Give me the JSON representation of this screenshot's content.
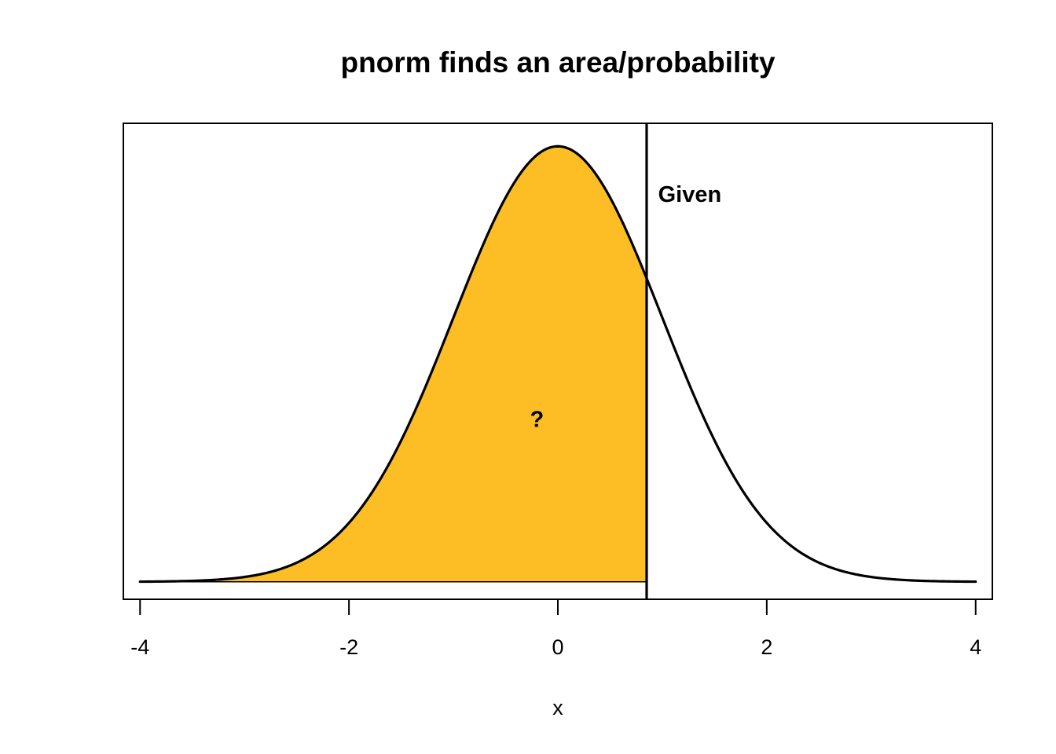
{
  "chart_data": {
    "type": "area",
    "title": "pnorm finds an area/probability",
    "xlabel": "x",
    "ylabel": "",
    "xlim": [
      -4.16,
      4.16
    ],
    "ylim": [
      -0.016,
      0.42
    ],
    "xticks": [
      -4,
      -2,
      0,
      2,
      4
    ],
    "xtick_labels": [
      "-4",
      "-2",
      "0",
      "2",
      "4"
    ],
    "show_y_axis": false,
    "grid": false,
    "curve": {
      "name": "",
      "function": "standard normal density",
      "mean": 0,
      "sd": 1,
      "x_range": [
        -4,
        4
      ],
      "color": "#000000"
    },
    "shaded_region": {
      "x_from": -4,
      "x_to": 0.85,
      "fill_color": "#FDBE25"
    },
    "vertical_line": {
      "x": 0.85,
      "color": "#000000"
    },
    "annotations": [
      {
        "text": "Given",
        "x": 0.96,
        "y": 0.348
      },
      {
        "text": "?",
        "x": -0.2,
        "y": 0.142
      }
    ]
  }
}
